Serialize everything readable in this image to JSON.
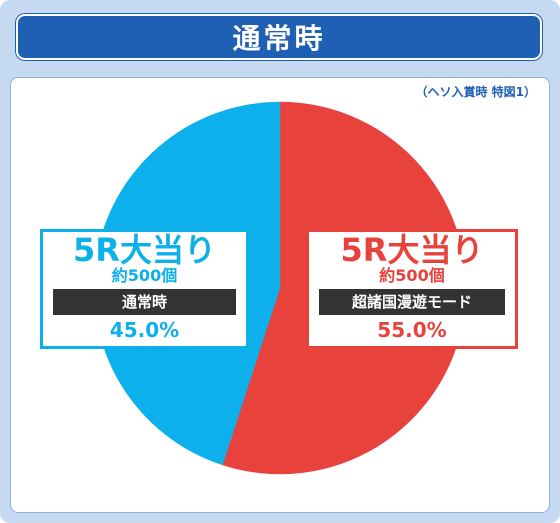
{
  "header": {
    "title": "通常時"
  },
  "note": "（ヘソ入賞時 特図1）",
  "colors": {
    "left_slice": "#0db0ea",
    "right_slice": "#e8423d",
    "frame": "#1f5fb4"
  },
  "chart_data": {
    "type": "pie",
    "title": "通常時",
    "slices": [
      {
        "title": "5R大当り",
        "sub": "約500個",
        "mode": "超諸国漫遊モード",
        "pct_label": "55.0%",
        "value": 55.0,
        "color": "#e8423d"
      },
      {
        "title": "5R大当り",
        "sub": "約500個",
        "mode": "通常時",
        "pct_label": "45.0%",
        "value": 45.0,
        "color": "#0db0ea"
      }
    ]
  }
}
